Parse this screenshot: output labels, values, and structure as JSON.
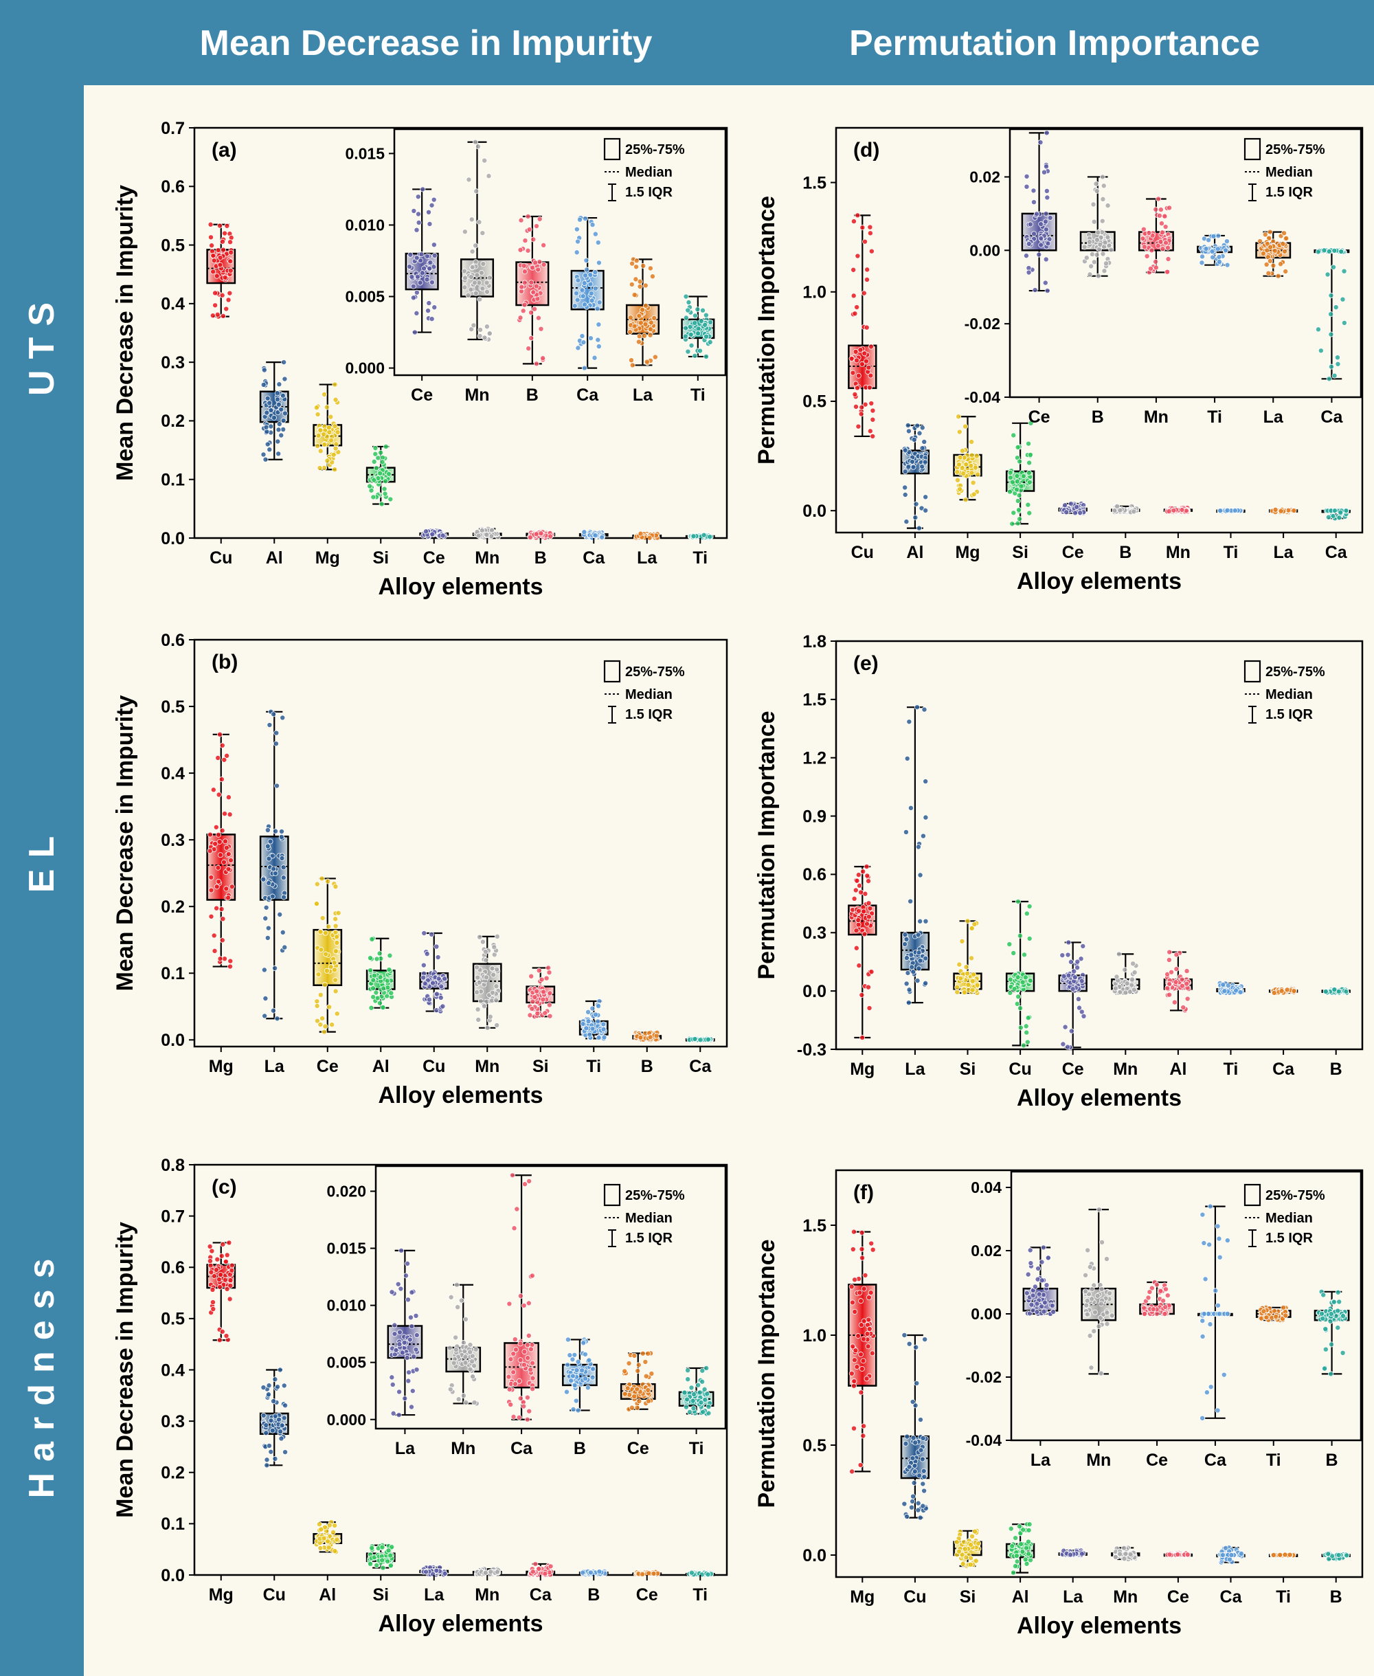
{
  "header": {
    "left_title": "Mean Decrease in Impurity",
    "right_title": "Permutation Importance"
  },
  "rows": {
    "uts": "UTS",
    "el": "EL",
    "hardness": "Hardness"
  },
  "colors": {
    "band": "#3f86ab",
    "background": "#fbf9ed",
    "elements": {
      "Cu": "#e8171d",
      "Mg": "#e8171d",
      "Al": "#2c5d95",
      "La": "#2c5d95",
      "Si": "#2ec55a",
      "Ce": "#e6c21c",
      "Mn": "#a9a9a9",
      "B": "#ef5566",
      "Ca": "#5b9ad8",
      "Ti": "#28a99a"
    }
  },
  "chart_data": [
    {
      "id": "a",
      "label": "(a)",
      "type": "box",
      "xlabel": "Alloy elements",
      "ylabel": "Mean Decrease in Impurity",
      "ylim": [
        0,
        0.7
      ],
      "yticks": [
        0.0,
        0.1,
        0.2,
        0.3,
        0.4,
        0.5,
        0.6,
        0.7
      ],
      "decimals": 1,
      "legend": [
        "25%-75%",
        "Median",
        "1.5 IQR"
      ],
      "categories": [
        "Cu",
        "Al",
        "Mg",
        "Si",
        "Ce",
        "Mn",
        "B",
        "Ca",
        "La",
        "Ti"
      ],
      "colors": [
        "#e8171d",
        "#2c5d95",
        "#e6c21c",
        "#2ec55a",
        "#5c5ca3",
        "#a9a9a9",
        "#ef5566",
        "#5b9ad8",
        "#e07b1f",
        "#28a99a"
      ],
      "boxes": [
        {
          "min": 0.378,
          "q1": 0.435,
          "median": 0.46,
          "q3": 0.492,
          "max": 0.535
        },
        {
          "min": 0.134,
          "q1": 0.198,
          "median": 0.224,
          "q3": 0.25,
          "max": 0.3
        },
        {
          "min": 0.117,
          "q1": 0.158,
          "median": 0.174,
          "q3": 0.193,
          "max": 0.262
        },
        {
          "min": 0.058,
          "q1": 0.096,
          "median": 0.108,
          "q3": 0.12,
          "max": 0.156
        },
        {
          "min": 0.0025,
          "q1": 0.0055,
          "median": 0.0066,
          "q3": 0.008,
          "max": 0.0125
        },
        {
          "min": 0.002,
          "q1": 0.005,
          "median": 0.0063,
          "q3": 0.0076,
          "max": 0.0158
        },
        {
          "min": 0.0003,
          "q1": 0.0044,
          "median": 0.006,
          "q3": 0.0074,
          "max": 0.0106
        },
        {
          "min": 0.0,
          "q1": 0.0041,
          "median": 0.0056,
          "q3": 0.0068,
          "max": 0.0105
        },
        {
          "min": 0.0002,
          "q1": 0.0024,
          "median": 0.0034,
          "q3": 0.0044,
          "max": 0.0076
        },
        {
          "min": 0.0008,
          "q1": 0.0021,
          "median": 0.0028,
          "q3": 0.0034,
          "max": 0.005
        }
      ],
      "inset": {
        "categories": [
          "Ce",
          "Mn",
          "B",
          "Ca",
          "La",
          "Ti"
        ],
        "source_index": [
          4,
          5,
          6,
          7,
          8,
          9
        ],
        "ylim": [
          -0.0005,
          0.0167
        ],
        "yticks": [
          0.0,
          0.005,
          0.01,
          0.015
        ],
        "decimals": 3
      }
    },
    {
      "id": "b",
      "label": "(b)",
      "type": "box",
      "xlabel": "Alloy elements",
      "ylabel": "Mean Decrease in Impurity",
      "ylim": [
        -0.01,
        0.6
      ],
      "yticks": [
        0.0,
        0.1,
        0.2,
        0.3,
        0.4,
        0.5,
        0.6
      ],
      "decimals": 1,
      "legend": [
        "25%-75%",
        "Median",
        "1.5 IQR"
      ],
      "categories": [
        "Mg",
        "La",
        "Ce",
        "Al",
        "Cu",
        "Mn",
        "Si",
        "Ti",
        "B",
        "Ca"
      ],
      "colors": [
        "#e8171d",
        "#2c5d95",
        "#e6c21c",
        "#2ec55a",
        "#5c5ca3",
        "#a9a9a9",
        "#ef5566",
        "#5b9ad8",
        "#e07b1f",
        "#28a99a"
      ],
      "boxes": [
        {
          "min": 0.11,
          "q1": 0.21,
          "median": 0.262,
          "q3": 0.308,
          "max": 0.458
        },
        {
          "min": 0.032,
          "q1": 0.21,
          "median": 0.26,
          "q3": 0.305,
          "max": 0.492
        },
        {
          "min": 0.012,
          "q1": 0.082,
          "median": 0.115,
          "q3": 0.165,
          "max": 0.242
        },
        {
          "min": 0.048,
          "q1": 0.076,
          "median": 0.088,
          "q3": 0.104,
          "max": 0.152
        },
        {
          "min": 0.043,
          "q1": 0.077,
          "median": 0.087,
          "q3": 0.1,
          "max": 0.16
        },
        {
          "min": 0.018,
          "q1": 0.058,
          "median": 0.088,
          "q3": 0.114,
          "max": 0.155
        },
        {
          "min": 0.035,
          "q1": 0.056,
          "median": 0.068,
          "q3": 0.08,
          "max": 0.108
        },
        {
          "min": 0.002,
          "q1": 0.008,
          "median": 0.016,
          "q3": 0.028,
          "max": 0.058
        },
        {
          "min": 0.0,
          "q1": 0.002,
          "median": 0.004,
          "q3": 0.006,
          "max": 0.011
        },
        {
          "min": 0.0,
          "q1": 0.0,
          "median": 0.0005,
          "q3": 0.001,
          "max": 0.002
        }
      ]
    },
    {
      "id": "c",
      "label": "(c)",
      "type": "box",
      "xlabel": "Alloy elements",
      "ylabel": "Mean Decrease in Impurity",
      "ylim": [
        0,
        0.8
      ],
      "yticks": [
        0.0,
        0.1,
        0.2,
        0.3,
        0.4,
        0.5,
        0.6,
        0.7,
        0.8
      ],
      "decimals": 1,
      "legend": [
        "25%-75%",
        "Median",
        "1.5 IQR"
      ],
      "categories": [
        "Mg",
        "Cu",
        "Al",
        "Si",
        "La",
        "Mn",
        "Ca",
        "B",
        "Ce",
        "Ti"
      ],
      "colors": [
        "#e8171d",
        "#2c5d95",
        "#e6c21c",
        "#2ec55a",
        "#5c5ca3",
        "#a9a9a9",
        "#ef5566",
        "#5b9ad8",
        "#e07b1f",
        "#28a99a"
      ],
      "boxes": [
        {
          "min": 0.458,
          "q1": 0.56,
          "median": 0.582,
          "q3": 0.605,
          "max": 0.648
        },
        {
          "min": 0.214,
          "q1": 0.275,
          "median": 0.293,
          "q3": 0.315,
          "max": 0.4
        },
        {
          "min": 0.045,
          "q1": 0.062,
          "median": 0.07,
          "q3": 0.08,
          "max": 0.103
        },
        {
          "min": 0.014,
          "q1": 0.027,
          "median": 0.034,
          "q3": 0.042,
          "max": 0.058
        },
        {
          "min": 0.0004,
          "q1": 0.0054,
          "median": 0.0066,
          "q3": 0.0082,
          "max": 0.0148
        },
        {
          "min": 0.0014,
          "q1": 0.0042,
          "median": 0.0053,
          "q3": 0.0063,
          "max": 0.0118
        },
        {
          "min": 0.0,
          "q1": 0.0028,
          "median": 0.0046,
          "q3": 0.0067,
          "max": 0.0214
        },
        {
          "min": 0.0008,
          "q1": 0.003,
          "median": 0.0038,
          "q3": 0.0048,
          "max": 0.007
        },
        {
          "min": 0.0009,
          "q1": 0.0018,
          "median": 0.0025,
          "q3": 0.0031,
          "max": 0.0058
        },
        {
          "min": 0.0005,
          "q1": 0.0012,
          "median": 0.0018,
          "q3": 0.0024,
          "max": 0.0045
        }
      ],
      "inset": {
        "categories": [
          "La",
          "Mn",
          "Ca",
          "B",
          "Ce",
          "Ti"
        ],
        "source_index": [
          4,
          5,
          6,
          7,
          8,
          9
        ],
        "ylim": [
          -0.0008,
          0.0222
        ],
        "yticks": [
          0.0,
          0.005,
          0.01,
          0.015,
          0.02
        ],
        "decimals": 3
      }
    },
    {
      "id": "d",
      "label": "(d)",
      "type": "box",
      "xlabel": "Alloy elements",
      "ylabel": "Permutation Importance",
      "ylim": [
        -0.1,
        1.75
      ],
      "yticks": [
        0.0,
        0.5,
        1.0,
        1.5
      ],
      "decimals": 1,
      "legend": [
        "25%-75%",
        "Median",
        "1.5 IQR"
      ],
      "categories": [
        "Cu",
        "Al",
        "Mg",
        "Si",
        "Ce",
        "B",
        "Mn",
        "Ti",
        "La",
        "Ca"
      ],
      "colors": [
        "#e8171d",
        "#2c5d95",
        "#e6c21c",
        "#2ec55a",
        "#5c5ca3",
        "#a9a9a9",
        "#ef5566",
        "#5b9ad8",
        "#e07b1f",
        "#28a99a"
      ],
      "boxes": [
        {
          "min": 0.34,
          "q1": 0.56,
          "median": 0.66,
          "q3": 0.755,
          "max": 1.35
        },
        {
          "min": -0.08,
          "q1": 0.17,
          "median": 0.22,
          "q3": 0.275,
          "max": 0.39
        },
        {
          "min": 0.05,
          "q1": 0.16,
          "median": 0.2,
          "q3": 0.255,
          "max": 0.43
        },
        {
          "min": -0.06,
          "q1": 0.09,
          "median": 0.13,
          "q3": 0.18,
          "max": 0.4
        },
        {
          "min": -0.011,
          "q1": 0.0,
          "median": 0.004,
          "q3": 0.01,
          "max": 0.032
        },
        {
          "min": -0.007,
          "q1": 0.0,
          "median": 0.002,
          "q3": 0.005,
          "max": 0.02
        },
        {
          "min": -0.006,
          "q1": 0.0,
          "median": 0.002,
          "q3": 0.005,
          "max": 0.014
        },
        {
          "min": -0.004,
          "q1": -0.0005,
          "median": 0.0,
          "q3": 0.001,
          "max": 0.004
        },
        {
          "min": -0.007,
          "q1": -0.002,
          "median": 0.0,
          "q3": 0.002,
          "max": 0.005
        },
        {
          "min": -0.035,
          "q1": -0.0005,
          "median": 0.0,
          "q3": 0.0,
          "max": 0.0
        }
      ],
      "inset": {
        "categories": [
          "Ce",
          "B",
          "Mn",
          "Ti",
          "La",
          "Ca"
        ],
        "source_index": [
          4,
          5,
          6,
          7,
          8,
          9
        ],
        "ylim": [
          -0.04,
          0.033
        ],
        "yticks": [
          -0.04,
          -0.02,
          0.0,
          0.02
        ],
        "decimals": 2
      }
    },
    {
      "id": "e",
      "label": "(e)",
      "type": "box",
      "xlabel": "Alloy elements",
      "ylabel": "Permutation Importance",
      "ylim": [
        -0.3,
        1.8
      ],
      "yticks": [
        -0.3,
        0.0,
        0.3,
        0.6,
        0.9,
        1.2,
        1.5,
        1.8
      ],
      "decimals": 1,
      "legend": [
        "25%-75%",
        "Median",
        "1.5 IQR"
      ],
      "categories": [
        "Mg",
        "La",
        "Si",
        "Cu",
        "Ce",
        "Mn",
        "Al",
        "Ti",
        "Ca",
        "B"
      ],
      "colors": [
        "#e8171d",
        "#2c5d95",
        "#e6c21c",
        "#2ec55a",
        "#5c5ca3",
        "#a9a9a9",
        "#ef5566",
        "#5b9ad8",
        "#e07b1f",
        "#28a99a"
      ],
      "boxes": [
        {
          "min": -0.24,
          "q1": 0.29,
          "median": 0.36,
          "q3": 0.44,
          "max": 0.64
        },
        {
          "min": -0.06,
          "q1": 0.11,
          "median": 0.21,
          "q3": 0.3,
          "max": 1.46
        },
        {
          "min": -0.01,
          "q1": 0.01,
          "median": 0.05,
          "q3": 0.09,
          "max": 0.36
        },
        {
          "min": -0.28,
          "q1": 0.0,
          "median": 0.05,
          "q3": 0.09,
          "max": 0.46
        },
        {
          "min": -0.29,
          "q1": 0.0,
          "median": 0.04,
          "q3": 0.08,
          "max": 0.25
        },
        {
          "min": -0.01,
          "q1": 0.01,
          "median": 0.03,
          "q3": 0.06,
          "max": 0.19
        },
        {
          "min": -0.1,
          "q1": 0.01,
          "median": 0.03,
          "q3": 0.06,
          "max": 0.2
        },
        {
          "min": -0.01,
          "q1": -0.002,
          "median": 0.0,
          "q3": 0.01,
          "max": 0.04
        },
        {
          "min": -0.01,
          "q1": -0.001,
          "median": 0.0,
          "q3": 0.003,
          "max": 0.01
        },
        {
          "min": -0.01,
          "q1": -0.005,
          "median": 0.0,
          "q3": 0.002,
          "max": 0.01
        }
      ]
    },
    {
      "id": "f",
      "label": "(f)",
      "type": "box",
      "xlabel": "Alloy elements",
      "ylabel": "Permutation Importance",
      "ylim": [
        -0.1,
        1.75
      ],
      "yticks": [
        0.0,
        0.5,
        1.0,
        1.5
      ],
      "decimals": 1,
      "legend": [
        "25%-75%",
        "Median",
        "1.5 IQR"
      ],
      "categories": [
        "Mg",
        "Cu",
        "Si",
        "Al",
        "La",
        "Mn",
        "Ce",
        "Ca",
        "Ti",
        "B"
      ],
      "colors": [
        "#e8171d",
        "#2c5d95",
        "#e6c21c",
        "#2ec55a",
        "#5c5ca3",
        "#a9a9a9",
        "#ef5566",
        "#5b9ad8",
        "#e07b1f",
        "#28a99a"
      ],
      "boxes": [
        {
          "min": 0.38,
          "q1": 0.77,
          "median": 1.0,
          "q3": 1.23,
          "max": 1.47
        },
        {
          "min": 0.17,
          "q1": 0.35,
          "median": 0.44,
          "q3": 0.54,
          "max": 1.0
        },
        {
          "min": -0.05,
          "q1": 0.0,
          "median": 0.03,
          "q3": 0.06,
          "max": 0.11
        },
        {
          "min": -0.08,
          "q1": -0.01,
          "median": 0.02,
          "q3": 0.05,
          "max": 0.14
        },
        {
          "min": 0.0,
          "q1": 0.001,
          "median": 0.004,
          "q3": 0.008,
          "max": 0.021
        },
        {
          "min": -0.019,
          "q1": -0.002,
          "median": 0.003,
          "q3": 0.008,
          "max": 0.033
        },
        {
          "min": 0.0,
          "q1": 0.0,
          "median": 0.002,
          "q3": 0.003,
          "max": 0.01
        },
        {
          "min": -0.033,
          "q1": 0.0,
          "median": 0.0,
          "q3": 0.0,
          "max": 0.034
        },
        {
          "min": -0.002,
          "q1": -0.001,
          "median": 0.0,
          "q3": 0.001,
          "max": 0.002
        },
        {
          "min": -0.019,
          "q1": -0.002,
          "median": -0.0005,
          "q3": 0.001,
          "max": 0.007
        }
      ],
      "inset": {
        "categories": [
          "La",
          "Mn",
          "Ce",
          "Ca",
          "Ti",
          "B"
        ],
        "source_index": [
          4,
          5,
          6,
          7,
          8,
          9
        ],
        "ylim": [
          -0.04,
          0.045
        ],
        "yticks": [
          -0.04,
          -0.02,
          0.0,
          0.02,
          0.04
        ],
        "decimals": 2
      }
    }
  ]
}
